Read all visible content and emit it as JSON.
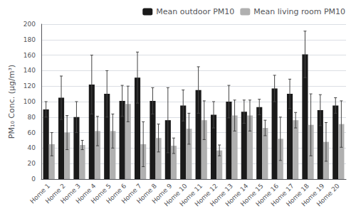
{
  "chart_data": {
    "type": "bar",
    "categories": [
      "Home 1",
      "Home 2",
      "Home 3",
      "Home 4",
      "Home 5",
      "Home 6",
      "Home 7",
      "Home 8",
      "Home 9",
      "Home 10",
      "Home 11",
      "Home 12",
      "Home 13",
      "Home 14",
      "Home 15",
      "Home 16",
      "Home 17",
      "Home 18",
      "Home 19",
      "Home 20"
    ],
    "series": [
      {
        "name": "Mean outdoor PM10",
        "color": "#1a1a1a",
        "values": [
          90,
          105,
          80,
          122,
          110,
          101,
          131,
          101,
          76,
          95,
          115,
          83,
          100,
          87,
          93,
          117,
          110,
          161,
          89,
          95
        ],
        "errors": [
          10,
          28,
          20,
          38,
          30,
          20,
          33,
          17,
          42,
          20,
          30,
          17,
          21,
          15,
          10,
          17,
          19,
          30,
          20,
          10
        ]
      },
      {
        "name": "Mean living room PM10",
        "color": "#b0b0b0",
        "values": [
          45,
          60,
          44,
          62,
          62,
          97,
          45,
          53,
          43,
          65,
          76,
          37,
          82,
          82,
          66,
          52,
          76,
          70,
          48,
          71
        ],
        "errors": [
          15,
          22,
          6,
          19,
          22,
          23,
          29,
          18,
          10,
          20,
          25,
          7,
          20,
          20,
          10,
          28,
          10,
          40,
          25,
          30
        ]
      }
    ],
    "ylabel": "PM₁₀ Conc. (μg/m³)",
    "ylim": [
      0,
      200
    ],
    "yticks": [
      0,
      20,
      40,
      60,
      80,
      100,
      120,
      140,
      160,
      180,
      200
    ],
    "grid": true,
    "legend": "upper right"
  }
}
